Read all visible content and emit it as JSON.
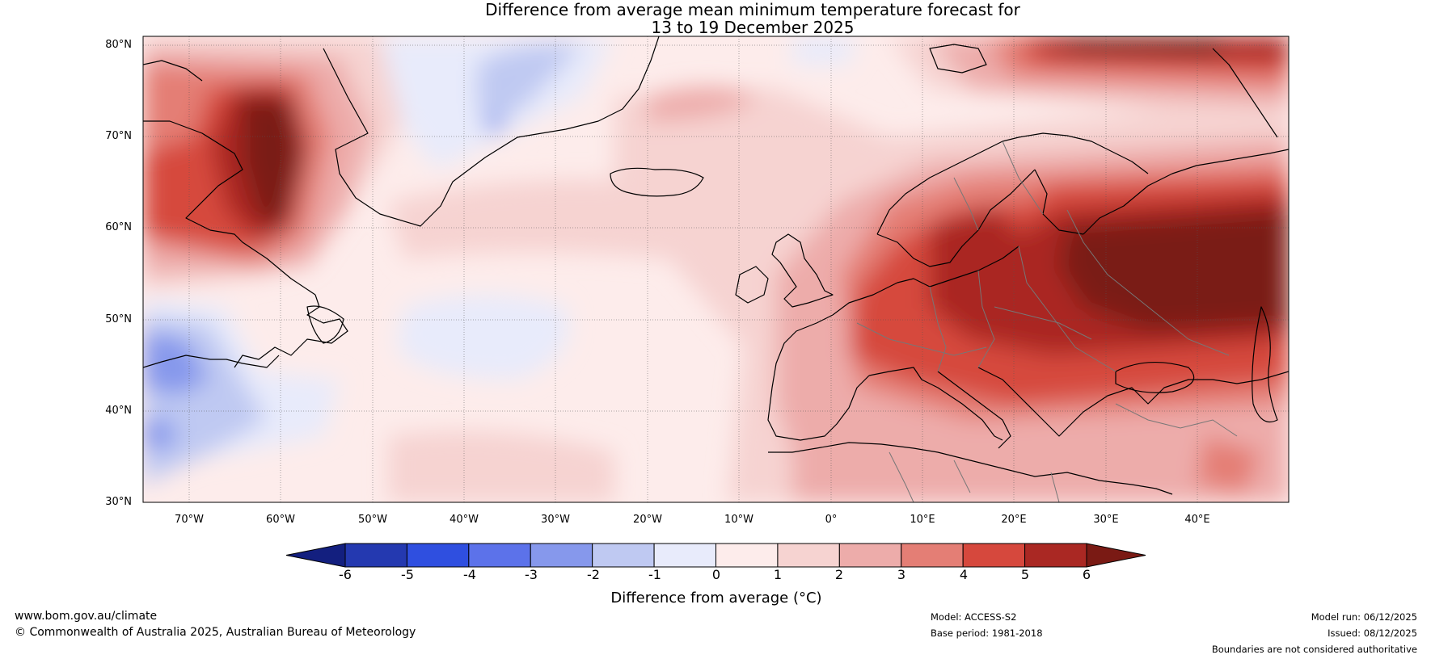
{
  "title": {
    "line1": "Difference from average mean minimum temperature forecast for",
    "line2": "13 to 19 December 2025"
  },
  "map": {
    "latitude_labels": [
      "80°N",
      "70°N",
      "60°N",
      "50°N",
      "40°N",
      "30°N"
    ],
    "longitude_labels": [
      "70°W",
      "60°W",
      "50°W",
      "40°W",
      "30°W",
      "20°W",
      "10°W",
      "0°",
      "10°E",
      "20°E",
      "30°E",
      "40°E"
    ],
    "extent": {
      "lon": [
        -75,
        50
      ],
      "lat": [
        30,
        81
      ]
    }
  },
  "colorbar": {
    "ticks": [
      "-6",
      "-5",
      "-4",
      "-3",
      "-2",
      "-1",
      "0",
      "1",
      "2",
      "3",
      "4",
      "5",
      "6"
    ],
    "colors": [
      "#131f7f",
      "#2439b0",
      "#2f4fe0",
      "#5c72ea",
      "#8698ec",
      "#bfc9f2",
      "#e8ebfb",
      "#fdeceb",
      "#f6d3d1",
      "#edacaa",
      "#e47e75",
      "#d6483d",
      "#aa2823",
      "#7a1a14"
    ],
    "label": "Difference from average (°C)"
  },
  "footer": {
    "website": "www.bom.gov.au/climate",
    "copyright": "© Commonwealth of Australia 2025, Australian Bureau of Meteorology",
    "model": "Model: ACCESS-S2",
    "base_period": "Base period: 1981-2018",
    "model_run": "Model run: 06/12/2025",
    "issued": "Issued: 08/12/2025",
    "disclaimer": "Boundaries are not considered authoritative"
  }
}
